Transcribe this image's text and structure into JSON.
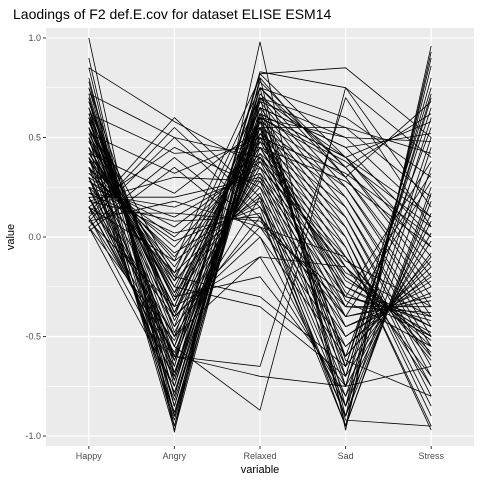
{
  "chart_data": {
    "type": "line",
    "title": "Laodings of F2 def.E.cov for dataset ELISE ESM14",
    "xlabel": "variable",
    "ylabel": "value",
    "categories": [
      "Happy",
      "Angry",
      "Relaxed",
      "Sad",
      "Stress"
    ],
    "ylim": [
      -1.05,
      1.05
    ],
    "yticks": [
      {
        "value": 1.0,
        "label": "1.0"
      },
      {
        "value": 0.5,
        "label": "0.5"
      },
      {
        "value": 0.0,
        "label": "0.0"
      },
      {
        "value": -0.5,
        "label": "-0.5"
      },
      {
        "value": -1.0,
        "label": "-1.0"
      }
    ],
    "grid": true,
    "legend": "none",
    "colors": {
      "panel": "#ebebeb",
      "grid": "#ffffff",
      "line": "#000000"
    },
    "series": [
      {
        "values": [
          1.0,
          -0.98,
          0.98,
          -0.97,
          0.96
        ]
      },
      {
        "values": [
          0.9,
          -0.95,
          0.8,
          -0.95,
          0.93
        ]
      },
      {
        "values": [
          0.85,
          -0.9,
          0.75,
          -0.9,
          0.9
        ]
      },
      {
        "values": [
          0.8,
          -0.85,
          0.7,
          -0.85,
          0.86
        ]
      },
      {
        "values": [
          0.78,
          -0.8,
          0.62,
          -0.75,
          0.8
        ]
      },
      {
        "values": [
          0.75,
          -0.75,
          0.6,
          -0.7,
          0.72
        ]
      },
      {
        "values": [
          0.72,
          -0.7,
          0.58,
          -0.65,
          0.65
        ]
      },
      {
        "values": [
          0.7,
          -0.68,
          0.55,
          -0.6,
          0.55
        ]
      },
      {
        "values": [
          0.68,
          -0.65,
          0.82,
          0.85,
          0.5
        ]
      },
      {
        "values": [
          0.65,
          -0.62,
          0.83,
          0.75,
          0.4
        ]
      },
      {
        "values": [
          0.62,
          -0.6,
          0.75,
          0.6,
          0.3
        ]
      },
      {
        "values": [
          0.6,
          -0.55,
          0.7,
          0.55,
          0.2
        ]
      },
      {
        "values": [
          0.58,
          -0.5,
          0.68,
          0.5,
          0.1
        ]
      },
      {
        "values": [
          0.55,
          -0.45,
          0.65,
          0.45,
          0.0
        ]
      },
      {
        "values": [
          0.52,
          -0.4,
          0.62,
          0.4,
          -0.1
        ]
      },
      {
        "values": [
          0.5,
          -0.38,
          0.6,
          0.35,
          -0.2
        ]
      },
      {
        "values": [
          0.48,
          -0.35,
          0.58,
          0.3,
          -0.3
        ]
      },
      {
        "values": [
          0.45,
          -0.3,
          0.55,
          0.25,
          -0.4
        ]
      },
      {
        "values": [
          0.42,
          -0.25,
          0.52,
          0.2,
          -0.5
        ]
      },
      {
        "values": [
          0.4,
          -0.2,
          0.5,
          0.15,
          -0.6
        ]
      },
      {
        "values": [
          0.38,
          -0.15,
          0.48,
          0.1,
          -0.7
        ]
      },
      {
        "values": [
          0.35,
          -0.1,
          0.45,
          0.05,
          -0.8
        ]
      },
      {
        "values": [
          0.32,
          -0.05,
          0.42,
          0.0,
          -0.9
        ]
      },
      {
        "values": [
          0.3,
          0.0,
          0.4,
          -0.05,
          -0.97
        ]
      },
      {
        "values": [
          0.28,
          0.05,
          0.38,
          -0.1,
          -0.6
        ]
      },
      {
        "values": [
          0.25,
          0.1,
          0.35,
          -0.15,
          -0.55
        ]
      },
      {
        "values": [
          0.22,
          0.15,
          0.32,
          -0.2,
          -0.5
        ]
      },
      {
        "values": [
          0.2,
          0.2,
          0.3,
          -0.25,
          -0.45
        ]
      },
      {
        "values": [
          0.18,
          0.3,
          0.28,
          -0.3,
          -0.4
        ]
      },
      {
        "values": [
          0.15,
          0.45,
          0.25,
          -0.35,
          -0.35
        ]
      },
      {
        "values": [
          0.12,
          0.6,
          0.2,
          -0.4,
          -0.3
        ]
      },
      {
        "values": [
          0.1,
          0.55,
          0.15,
          -0.45,
          -0.25
        ]
      },
      {
        "values": [
          0.08,
          0.5,
          0.1,
          -0.5,
          -0.2
        ]
      },
      {
        "values": [
          0.05,
          0.4,
          0.05,
          -0.55,
          -0.15
        ]
      },
      {
        "values": [
          0.03,
          0.35,
          0.0,
          -0.6,
          -0.1
        ]
      },
      {
        "values": [
          0.6,
          -0.2,
          -0.3,
          -0.65,
          0.75
        ]
      },
      {
        "values": [
          0.55,
          -0.25,
          -0.35,
          -0.7,
          0.7
        ]
      },
      {
        "values": [
          0.5,
          -0.3,
          -0.2,
          -0.75,
          0.6
        ]
      },
      {
        "values": [
          0.45,
          -0.35,
          -0.1,
          -0.8,
          0.5
        ]
      },
      {
        "values": [
          0.4,
          -0.4,
          0.0,
          -0.85,
          0.45
        ]
      },
      {
        "values": [
          0.35,
          -0.45,
          0.1,
          -0.9,
          0.35
        ]
      },
      {
        "values": [
          0.3,
          -0.5,
          0.2,
          -0.95,
          0.25
        ]
      },
      {
        "values": [
          0.25,
          -0.55,
          -0.87,
          0.75,
          0.15
        ]
      },
      {
        "values": [
          0.2,
          -0.6,
          -0.65,
          0.7,
          0.05
        ]
      },
      {
        "values": [
          0.15,
          -0.65,
          0.82,
          0.4,
          -0.05
        ]
      },
      {
        "values": [
          0.1,
          -0.7,
          0.78,
          0.35,
          -0.15
        ]
      },
      {
        "values": [
          0.05,
          -0.75,
          0.75,
          0.3,
          -0.25
        ]
      },
      {
        "values": [
          0.7,
          -0.8,
          0.72,
          0.25,
          -0.35
        ]
      },
      {
        "values": [
          0.65,
          -0.85,
          0.7,
          0.2,
          -0.45
        ]
      },
      {
        "values": [
          0.6,
          -0.9,
          0.68,
          0.15,
          -0.55
        ]
      },
      {
        "values": [
          0.55,
          -0.95,
          0.65,
          0.1,
          -0.65
        ]
      },
      {
        "values": [
          0.5,
          -0.97,
          0.62,
          0.05,
          -0.75
        ]
      },
      {
        "values": [
          0.45,
          -0.92,
          0.6,
          0.0,
          -0.85
        ]
      },
      {
        "values": [
          0.4,
          -0.88,
          0.58,
          -0.05,
          -0.95
        ]
      },
      {
        "values": [
          0.35,
          -0.82,
          0.55,
          -0.1,
          -0.62
        ]
      },
      {
        "values": [
          0.3,
          -0.78,
          0.52,
          -0.15,
          -0.58
        ]
      },
      {
        "values": [
          0.25,
          -0.72,
          0.5,
          -0.2,
          -0.52
        ]
      },
      {
        "values": [
          0.2,
          -0.68,
          0.48,
          -0.25,
          -0.48
        ]
      },
      {
        "values": [
          0.15,
          -0.62,
          0.45,
          -0.3,
          -0.42
        ]
      },
      {
        "values": [
          0.1,
          -0.58,
          0.42,
          -0.35,
          -0.38
        ]
      },
      {
        "values": [
          0.05,
          -0.52,
          0.4,
          -0.4,
          -0.32
        ]
      },
      {
        "values": [
          0.75,
          -0.48,
          0.38,
          -0.45,
          -0.28
        ]
      },
      {
        "values": [
          0.68,
          -0.42,
          0.35,
          -0.5,
          -0.22
        ]
      },
      {
        "values": [
          0.62,
          -0.38,
          0.32,
          -0.55,
          -0.18
        ]
      },
      {
        "values": [
          0.58,
          -0.32,
          0.3,
          -0.6,
          -0.12
        ]
      },
      {
        "values": [
          0.52,
          -0.28,
          0.28,
          -0.65,
          -0.08
        ]
      },
      {
        "values": [
          0.48,
          -0.22,
          0.25,
          -0.7,
          -0.02
        ]
      },
      {
        "values": [
          0.42,
          -0.18,
          0.22,
          -0.75,
          0.02
        ]
      },
      {
        "values": [
          0.38,
          -0.12,
          0.2,
          -0.8,
          0.08
        ]
      },
      {
        "values": [
          0.32,
          -0.08,
          0.18,
          -0.85,
          0.12
        ]
      },
      {
        "values": [
          0.28,
          -0.02,
          0.15,
          -0.9,
          0.18
        ]
      },
      {
        "values": [
          0.22,
          0.02,
          0.12,
          -0.95,
          0.22
        ]
      },
      {
        "values": [
          0.18,
          0.08,
          0.1,
          -0.4,
          0.28
        ]
      },
      {
        "values": [
          0.12,
          0.12,
          0.08,
          -0.35,
          0.32
        ]
      },
      {
        "values": [
          0.08,
          0.18,
          0.05,
          -0.3,
          0.38
        ]
      },
      {
        "values": [
          0.65,
          -0.38,
          0.55,
          0.55,
          0.42
        ]
      },
      {
        "values": [
          0.55,
          -0.32,
          0.6,
          0.5,
          0.48
        ]
      },
      {
        "values": [
          0.45,
          -0.28,
          0.65,
          0.45,
          0.52
        ]
      },
      {
        "values": [
          0.35,
          -0.22,
          0.7,
          0.4,
          0.58
        ]
      },
      {
        "values": [
          0.25,
          -0.18,
          0.75,
          0.35,
          0.62
        ]
      },
      {
        "values": [
          0.15,
          -0.12,
          0.8,
          0.3,
          0.68
        ]
      },
      {
        "values": [
          0.85,
          0.58,
          0.35,
          -0.12,
          -0.35
        ]
      },
      {
        "values": [
          0.72,
          0.5,
          0.4,
          -0.18,
          -0.4
        ]
      },
      {
        "values": [
          0.62,
          0.42,
          0.45,
          -0.22,
          -0.45
        ]
      },
      {
        "values": [
          0.52,
          0.32,
          0.5,
          -0.28,
          -0.5
        ]
      },
      {
        "values": [
          0.42,
          0.22,
          0.55,
          -0.32,
          -0.55
        ]
      },
      {
        "values": [
          0.3,
          -0.6,
          -0.7,
          -0.75,
          -0.65
        ]
      },
      {
        "values": [
          0.2,
          -0.5,
          -0.1,
          -0.15,
          -0.7
        ]
      },
      {
        "values": [
          0.15,
          -0.4,
          0.05,
          -0.1,
          -0.75
        ]
      },
      {
        "values": [
          0.08,
          -0.35,
          0.65,
          -0.62,
          -0.8
        ]
      },
      {
        "values": [
          0.5,
          -0.9,
          0.55,
          -0.92,
          -0.95
        ]
      },
      {
        "values": [
          0.6,
          -0.85,
          0.62,
          0.4,
          0.1
        ]
      },
      {
        "values": [
          0.7,
          -0.72,
          0.6,
          0.38,
          0.05
        ]
      },
      {
        "values": [
          0.4,
          -0.62,
          0.5,
          0.32,
          0.0
        ]
      },
      {
        "values": [
          0.3,
          -0.55,
          0.45,
          0.28,
          -0.05
        ]
      }
    ]
  }
}
